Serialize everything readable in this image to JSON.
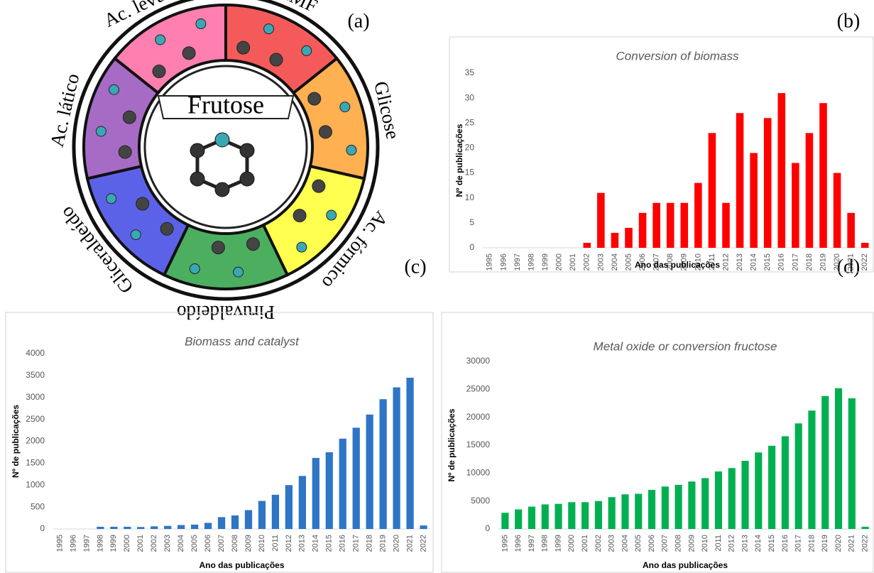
{
  "panel_labels": [
    "(a)",
    "(b)",
    "(c)",
    "(d)"
  ],
  "diagram": {
    "center": "Frutose",
    "segments": [
      {
        "label": "Ac. levulínico",
        "color": "#ff7fb0"
      },
      {
        "label": "HMF",
        "color": "#f55a5a"
      },
      {
        "label": "Glicose",
        "color": "#ffb050"
      },
      {
        "label": "Ac. fórmico",
        "color": "#ffff50"
      },
      {
        "label": "Piruvaldeído",
        "color": "#4caf5f"
      },
      {
        "label": "Gliceraldeído",
        "color": "#5c62e8"
      },
      {
        "label": "Ac. lático",
        "color": "#a66bc4"
      }
    ]
  },
  "chart_data": [
    {
      "type": "bar",
      "title": "Conversion of biomass",
      "x_label": "Ano das publicações",
      "y_label": "Nº de publicações",
      "categories": [
        "1995",
        "1996",
        "1997",
        "1998",
        "1999",
        "2000",
        "2001",
        "2002",
        "2003",
        "2004",
        "2005",
        "2006",
        "2007",
        "2008",
        "2009",
        "2010",
        "2011",
        "2012",
        "2013",
        "2014",
        "2015",
        "2016",
        "2017",
        "2018",
        "2019",
        "2020",
        "2021",
        "2022"
      ],
      "values": [
        0,
        0,
        0,
        0,
        0,
        0,
        0,
        1,
        11,
        3,
        4,
        7,
        9,
        9,
        9,
        13,
        23,
        9,
        27,
        19,
        26,
        31,
        17,
        23,
        29,
        15,
        7,
        1
      ],
      "color": "#ff0000",
      "ylim": [
        0,
        35
      ],
      "yticks": [
        0,
        5,
        10,
        15,
        20,
        25,
        30,
        35
      ],
      "grid": false
    },
    {
      "type": "bar",
      "title": "Biomass and catalyst",
      "x_label": "Ano das publicações",
      "y_label": "Nº de publicações",
      "categories": [
        "1995",
        "1996",
        "1997",
        "1998",
        "1999",
        "2000",
        "2001",
        "2002",
        "2003",
        "2004",
        "2005",
        "2006",
        "2007",
        "2008",
        "2009",
        "2010",
        "2011",
        "2012",
        "2013",
        "2014",
        "2015",
        "2016",
        "2017",
        "2018",
        "2019",
        "2020",
        "2021",
        "2022"
      ],
      "values": [
        0,
        0,
        0,
        50,
        50,
        50,
        45,
        60,
        70,
        90,
        100,
        140,
        270,
        310,
        430,
        640,
        780,
        1000,
        1210,
        1620,
        1750,
        2060,
        2310,
        2610,
        2960,
        3230,
        3450,
        80
      ],
      "color": "#2e75c6",
      "ylim": [
        0,
        4000
      ],
      "yticks": [
        0,
        500,
        1000,
        1500,
        2000,
        2500,
        3000,
        3500,
        4000
      ],
      "grid": false
    },
    {
      "type": "bar",
      "title": "Metal oxide or conversion fructose",
      "x_label": "Ano das publicações",
      "y_label": "Nº de publicações",
      "categories": [
        "1995",
        "1996",
        "1997",
        "1998",
        "1999",
        "2000",
        "2001",
        "2002",
        "2003",
        "2004",
        "2005",
        "2006",
        "2007",
        "2008",
        "2009",
        "2010",
        "2011",
        "2012",
        "2013",
        "2014",
        "2015",
        "2016",
        "2017",
        "2018",
        "2019",
        "2020",
        "2021",
        "2022"
      ],
      "values": [
        2900,
        3500,
        4000,
        4400,
        4500,
        4800,
        4800,
        5000,
        5700,
        6200,
        6300,
        7000,
        7600,
        7900,
        8500,
        9100,
        10300,
        10900,
        12200,
        13700,
        14900,
        16600,
        18900,
        21200,
        23800,
        25200,
        23400,
        400
      ],
      "color": "#00b050",
      "ylim": [
        0,
        30000
      ],
      "yticks": [
        0,
        5000,
        10000,
        15000,
        20000,
        25000,
        30000
      ],
      "grid": false
    }
  ]
}
